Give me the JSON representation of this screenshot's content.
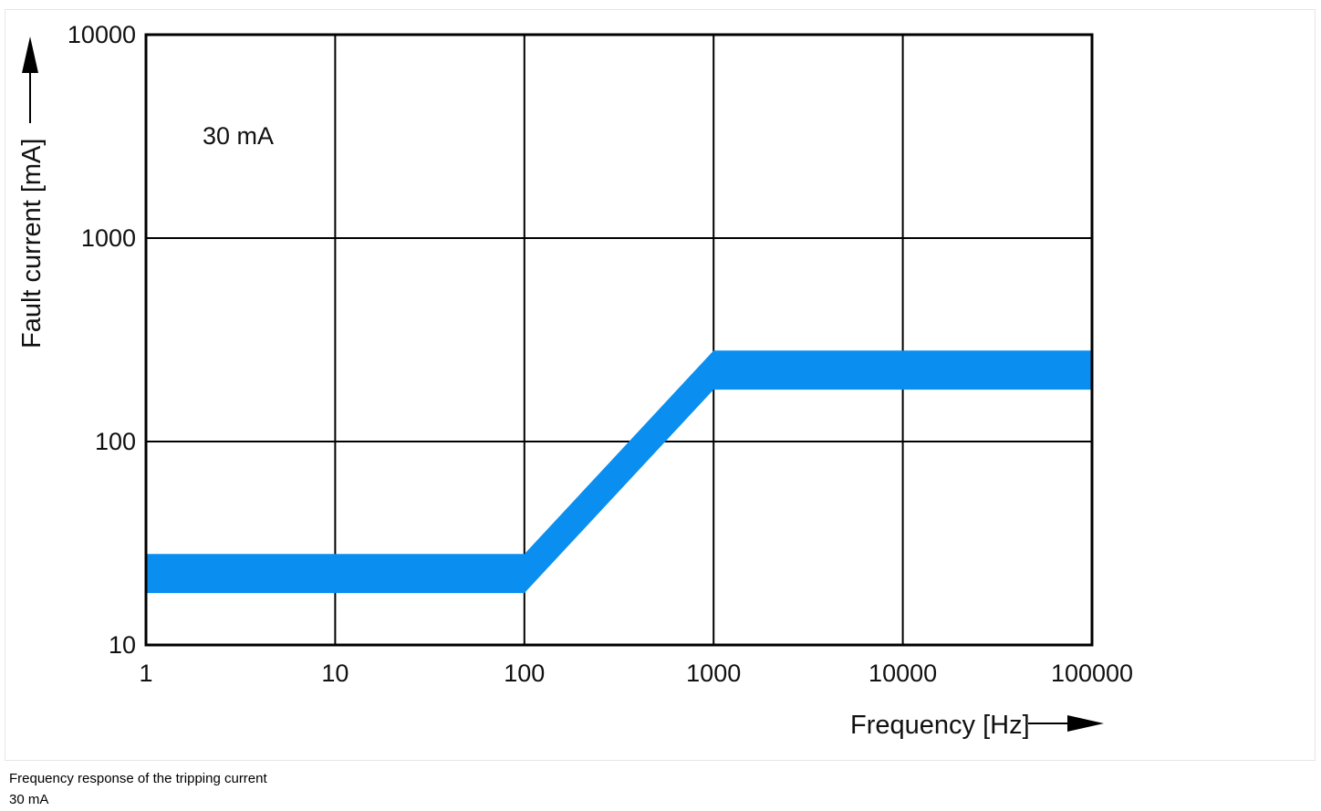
{
  "chart_data": {
    "type": "area",
    "xscale": "log",
    "yscale": "log",
    "xlabel": "Frequency [Hz]",
    "ylabel": "Fault current [mA]",
    "xlim": [
      1,
      100000
    ],
    "ylim": [
      10,
      10000
    ],
    "x_ticks": [
      "1",
      "10",
      "100",
      "1000",
      "10000",
      "100000"
    ],
    "y_ticks": [
      "10",
      "100",
      "1000",
      "10000"
    ],
    "grid": true,
    "annotation": "30 mA",
    "band_color": "#0a8ff0",
    "series": [
      {
        "x": [
          1,
          100,
          1000,
          100000
        ],
        "upper": [
          28,
          28,
          280,
          280
        ],
        "lower": [
          18,
          18,
          180,
          180
        ]
      }
    ]
  },
  "caption": {
    "line1": "Frequency response of the tripping current",
    "line2": "30 mA"
  }
}
